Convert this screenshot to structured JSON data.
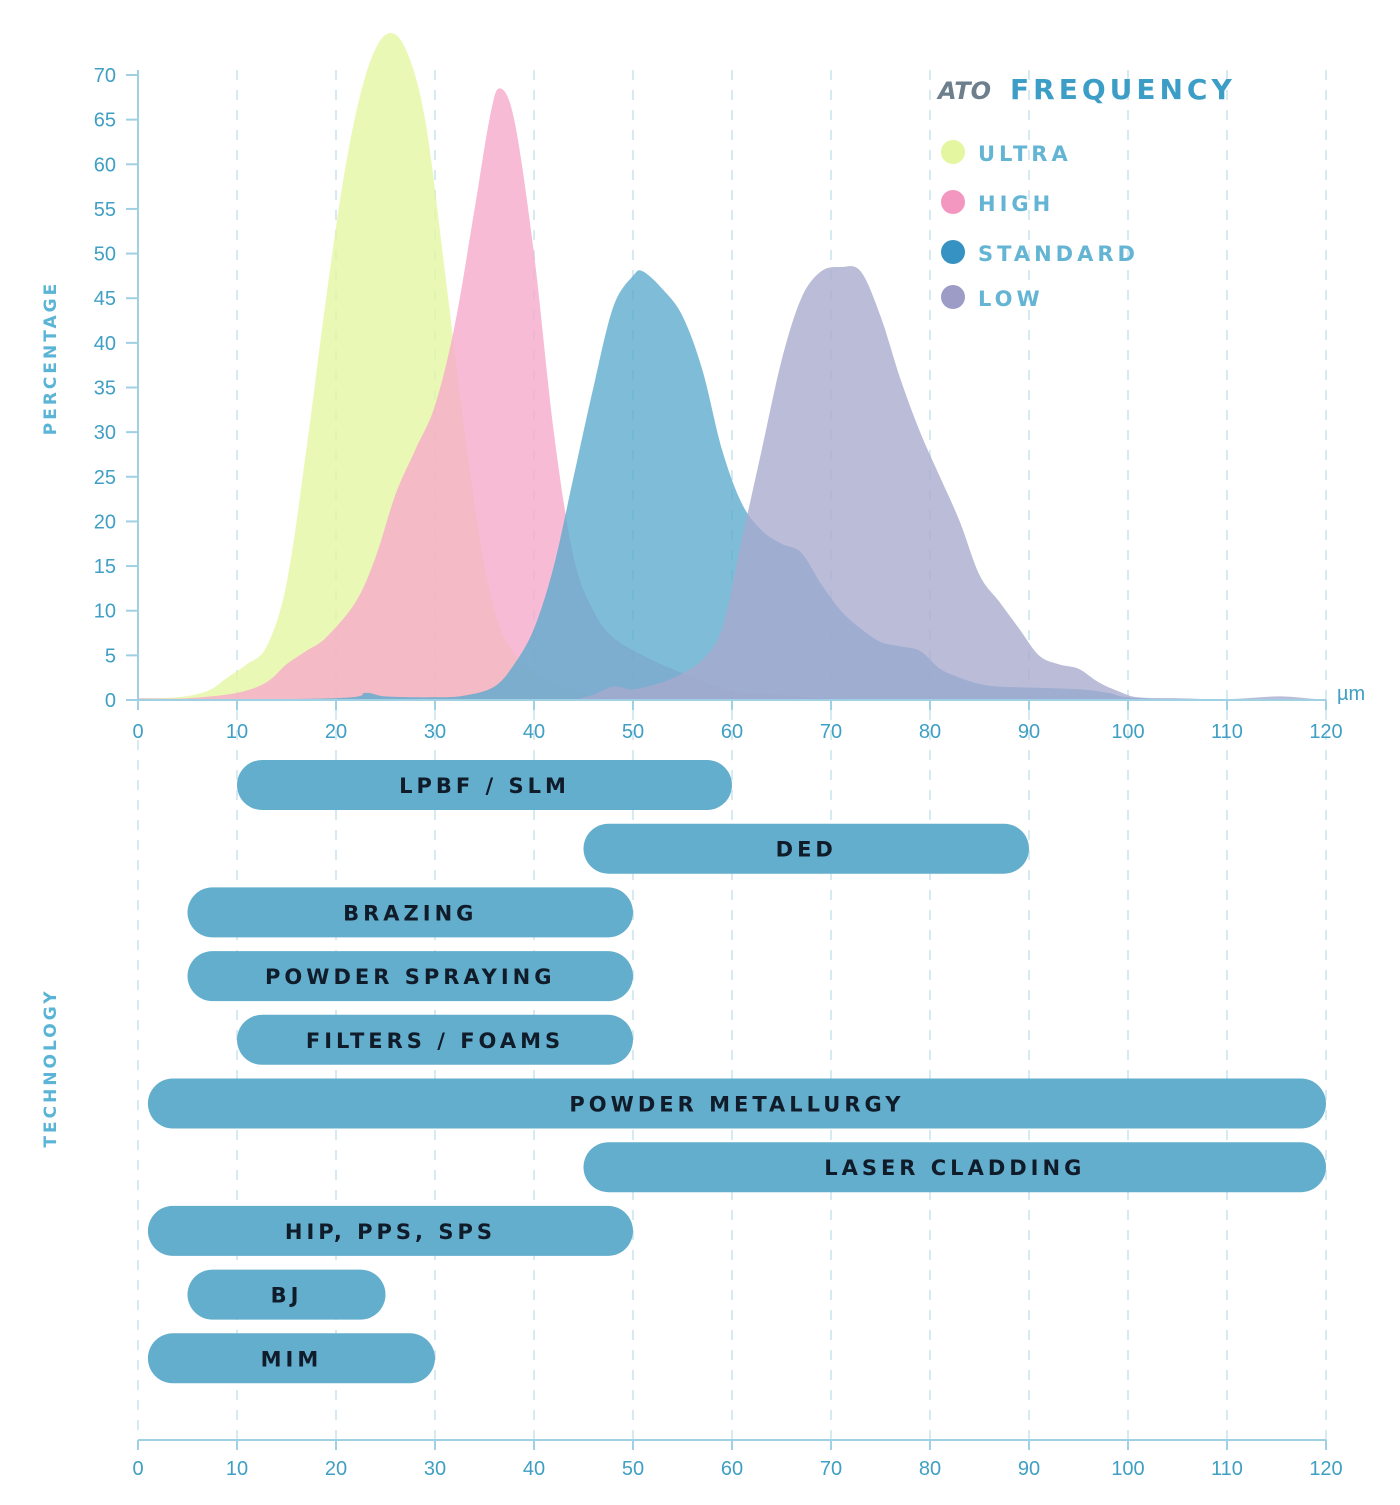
{
  "chart_data": {
    "type": "area",
    "title": "FREQUENCY",
    "brand": "ATO",
    "xlabel": "µm",
    "ylabel": "PERCENTAGE",
    "xlim": [
      0,
      120
    ],
    "ylim": [
      0,
      70
    ],
    "x_ticks": [
      0,
      10,
      20,
      30,
      40,
      50,
      60,
      70,
      80,
      90,
      100,
      110,
      120
    ],
    "y_ticks": [
      0,
      5,
      10,
      15,
      20,
      25,
      30,
      35,
      40,
      45,
      50,
      55,
      60,
      65,
      70
    ],
    "legend_position": "top-right",
    "series": [
      {
        "name": "ULTRA",
        "color": "#e4f6a0",
        "points": [
          [
            0,
            0.2
          ],
          [
            4,
            0.3
          ],
          [
            7,
            1
          ],
          [
            9,
            2.5
          ],
          [
            11,
            4
          ],
          [
            13,
            6
          ],
          [
            15,
            13
          ],
          [
            17,
            28
          ],
          [
            19,
            45
          ],
          [
            21,
            60
          ],
          [
            23,
            70
          ],
          [
            25,
            74.5
          ],
          [
            27,
            73
          ],
          [
            29,
            65
          ],
          [
            31,
            48
          ],
          [
            33,
            30
          ],
          [
            35,
            15
          ],
          [
            37,
            7
          ],
          [
            40,
            3
          ],
          [
            43,
            1.5
          ],
          [
            46,
            0.5
          ],
          [
            50,
            0.2
          ],
          [
            60,
            0
          ],
          [
            120,
            0
          ]
        ]
      },
      {
        "name": "HIGH",
        "color": "#f6a8cb",
        "points": [
          [
            0,
            0.2
          ],
          [
            5,
            0.2
          ],
          [
            10,
            0.8
          ],
          [
            13,
            2
          ],
          [
            15,
            4
          ],
          [
            17,
            5.5
          ],
          [
            19,
            7
          ],
          [
            22,
            11
          ],
          [
            24,
            16
          ],
          [
            26,
            23
          ],
          [
            28,
            28
          ],
          [
            30,
            33
          ],
          [
            32,
            42
          ],
          [
            34,
            55
          ],
          [
            35.5,
            65
          ],
          [
            36.5,
            68.5
          ],
          [
            38,
            65
          ],
          [
            40,
            50
          ],
          [
            42,
            30
          ],
          [
            44,
            16
          ],
          [
            46,
            10
          ],
          [
            48,
            7
          ],
          [
            51,
            5
          ],
          [
            55,
            3
          ],
          [
            60,
            1
          ],
          [
            65,
            0.5
          ],
          [
            70,
            0.2
          ],
          [
            80,
            0
          ],
          [
            120,
            0
          ]
        ]
      },
      {
        "name": "STANDARD",
        "color": "#5aa9cd",
        "points": [
          [
            0,
            0
          ],
          [
            20,
            0.2
          ],
          [
            23,
            0.8
          ],
          [
            25,
            0.4
          ],
          [
            30,
            0.3
          ],
          [
            33,
            0.5
          ],
          [
            36,
            1.5
          ],
          [
            38,
            4
          ],
          [
            40,
            8
          ],
          [
            42,
            15
          ],
          [
            44,
            25
          ],
          [
            46,
            35
          ],
          [
            48,
            44
          ],
          [
            50,
            47.5
          ],
          [
            51,
            48
          ],
          [
            53,
            46
          ],
          [
            55,
            43
          ],
          [
            57,
            37
          ],
          [
            59,
            28
          ],
          [
            61,
            22
          ],
          [
            63,
            19
          ],
          [
            65,
            17.5
          ],
          [
            67,
            16.5
          ],
          [
            69,
            13
          ],
          [
            71,
            10
          ],
          [
            73,
            8
          ],
          [
            75,
            6.5
          ],
          [
            77,
            6
          ],
          [
            79,
            5.5
          ],
          [
            81,
            3.5
          ],
          [
            83,
            2.5
          ],
          [
            85,
            1.8
          ],
          [
            87,
            1.5
          ],
          [
            90,
            1.4
          ],
          [
            95,
            1.2
          ],
          [
            98,
            0.8
          ],
          [
            100,
            0.3
          ],
          [
            105,
            0.1
          ],
          [
            120,
            0
          ]
        ]
      },
      {
        "name": "LOW",
        "color": "#a8a9cd",
        "points": [
          [
            0,
            0
          ],
          [
            40,
            0
          ],
          [
            45,
            0.3
          ],
          [
            48,
            1.5
          ],
          [
            50,
            1.2
          ],
          [
            53,
            2
          ],
          [
            55,
            3
          ],
          [
            57,
            4.5
          ],
          [
            59,
            8
          ],
          [
            61,
            18
          ],
          [
            63,
            28
          ],
          [
            65,
            38
          ],
          [
            67,
            45
          ],
          [
            69,
            48
          ],
          [
            71,
            48.5
          ],
          [
            73,
            48
          ],
          [
            75,
            43
          ],
          [
            77,
            36
          ],
          [
            79,
            30
          ],
          [
            81,
            25
          ],
          [
            83,
            20
          ],
          [
            85,
            14
          ],
          [
            87,
            11
          ],
          [
            89,
            8
          ],
          [
            91,
            5
          ],
          [
            93,
            4
          ],
          [
            95,
            3.5
          ],
          [
            97,
            2
          ],
          [
            99,
            1
          ],
          [
            101,
            0.3
          ],
          [
            105,
            0.2
          ],
          [
            110,
            0.1
          ],
          [
            115,
            0.4
          ],
          [
            118,
            0.2
          ],
          [
            120,
            0
          ]
        ]
      }
    ],
    "technology": {
      "ylabel": "TECHNOLOGY",
      "bars": [
        {
          "label": "LPBF / SLM",
          "start": 10,
          "end": 60
        },
        {
          "label": "DED",
          "start": 45,
          "end": 90
        },
        {
          "label": "BRAZING",
          "start": 5,
          "end": 50
        },
        {
          "label": "POWDER SPRAYING",
          "start": 5,
          "end": 50
        },
        {
          "label": "FILTERS / FOAMS",
          "start": 10,
          "end": 50
        },
        {
          "label": "POWDER METALLURGY",
          "start": 1,
          "end": 120
        },
        {
          "label": "LASER CLADDING",
          "start": 45,
          "end": 120
        },
        {
          "label": "HIP, PPS, SPS",
          "start": 1,
          "end": 50
        },
        {
          "label": "BJ",
          "start": 5,
          "end": 25
        },
        {
          "label": "MIM",
          "start": 1,
          "end": 30
        }
      ]
    }
  }
}
